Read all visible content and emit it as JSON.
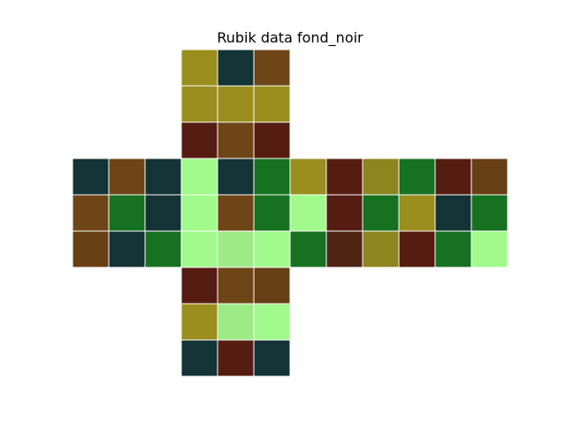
{
  "chart_data": {
    "type": "heatmap",
    "title": "Rubik data fond_noir",
    "layout": "cube-net-cross",
    "sticker_border_color": "#ffffff",
    "palette": {
      "0": "#143336",
      "1": "#6e4516",
      "2": "#167120",
      "3": "#a1fa8b",
      "4": "#9a8e1e",
      "5": "#551d11",
      "6": "#9eea86",
      "7": "#8d861f",
      "8": "#684015",
      "9": "#4f2312"
    },
    "grid": [
      [
        null,
        null,
        null,
        4,
        0,
        1,
        null,
        null,
        null,
        null,
        null,
        null
      ],
      [
        null,
        null,
        null,
        4,
        4,
        4,
        null,
        null,
        null,
        null,
        null,
        null
      ],
      [
        null,
        null,
        null,
        5,
        1,
        5,
        null,
        null,
        null,
        null,
        null,
        null
      ],
      [
        0,
        1,
        0,
        3,
        0,
        2,
        4,
        5,
        7,
        2,
        5,
        8
      ],
      [
        1,
        2,
        0,
        3,
        1,
        2,
        3,
        5,
        2,
        4,
        0,
        2
      ],
      [
        8,
        0,
        2,
        3,
        6,
        3,
        2,
        9,
        7,
        5,
        2,
        3
      ],
      [
        null,
        null,
        null,
        5,
        1,
        8,
        null,
        null,
        null,
        null,
        null,
        null
      ],
      [
        null,
        null,
        null,
        4,
        6,
        3,
        null,
        null,
        null,
        null,
        null,
        null
      ],
      [
        null,
        null,
        null,
        0,
        5,
        0,
        null,
        null,
        null,
        null,
        null,
        null
      ]
    ]
  }
}
